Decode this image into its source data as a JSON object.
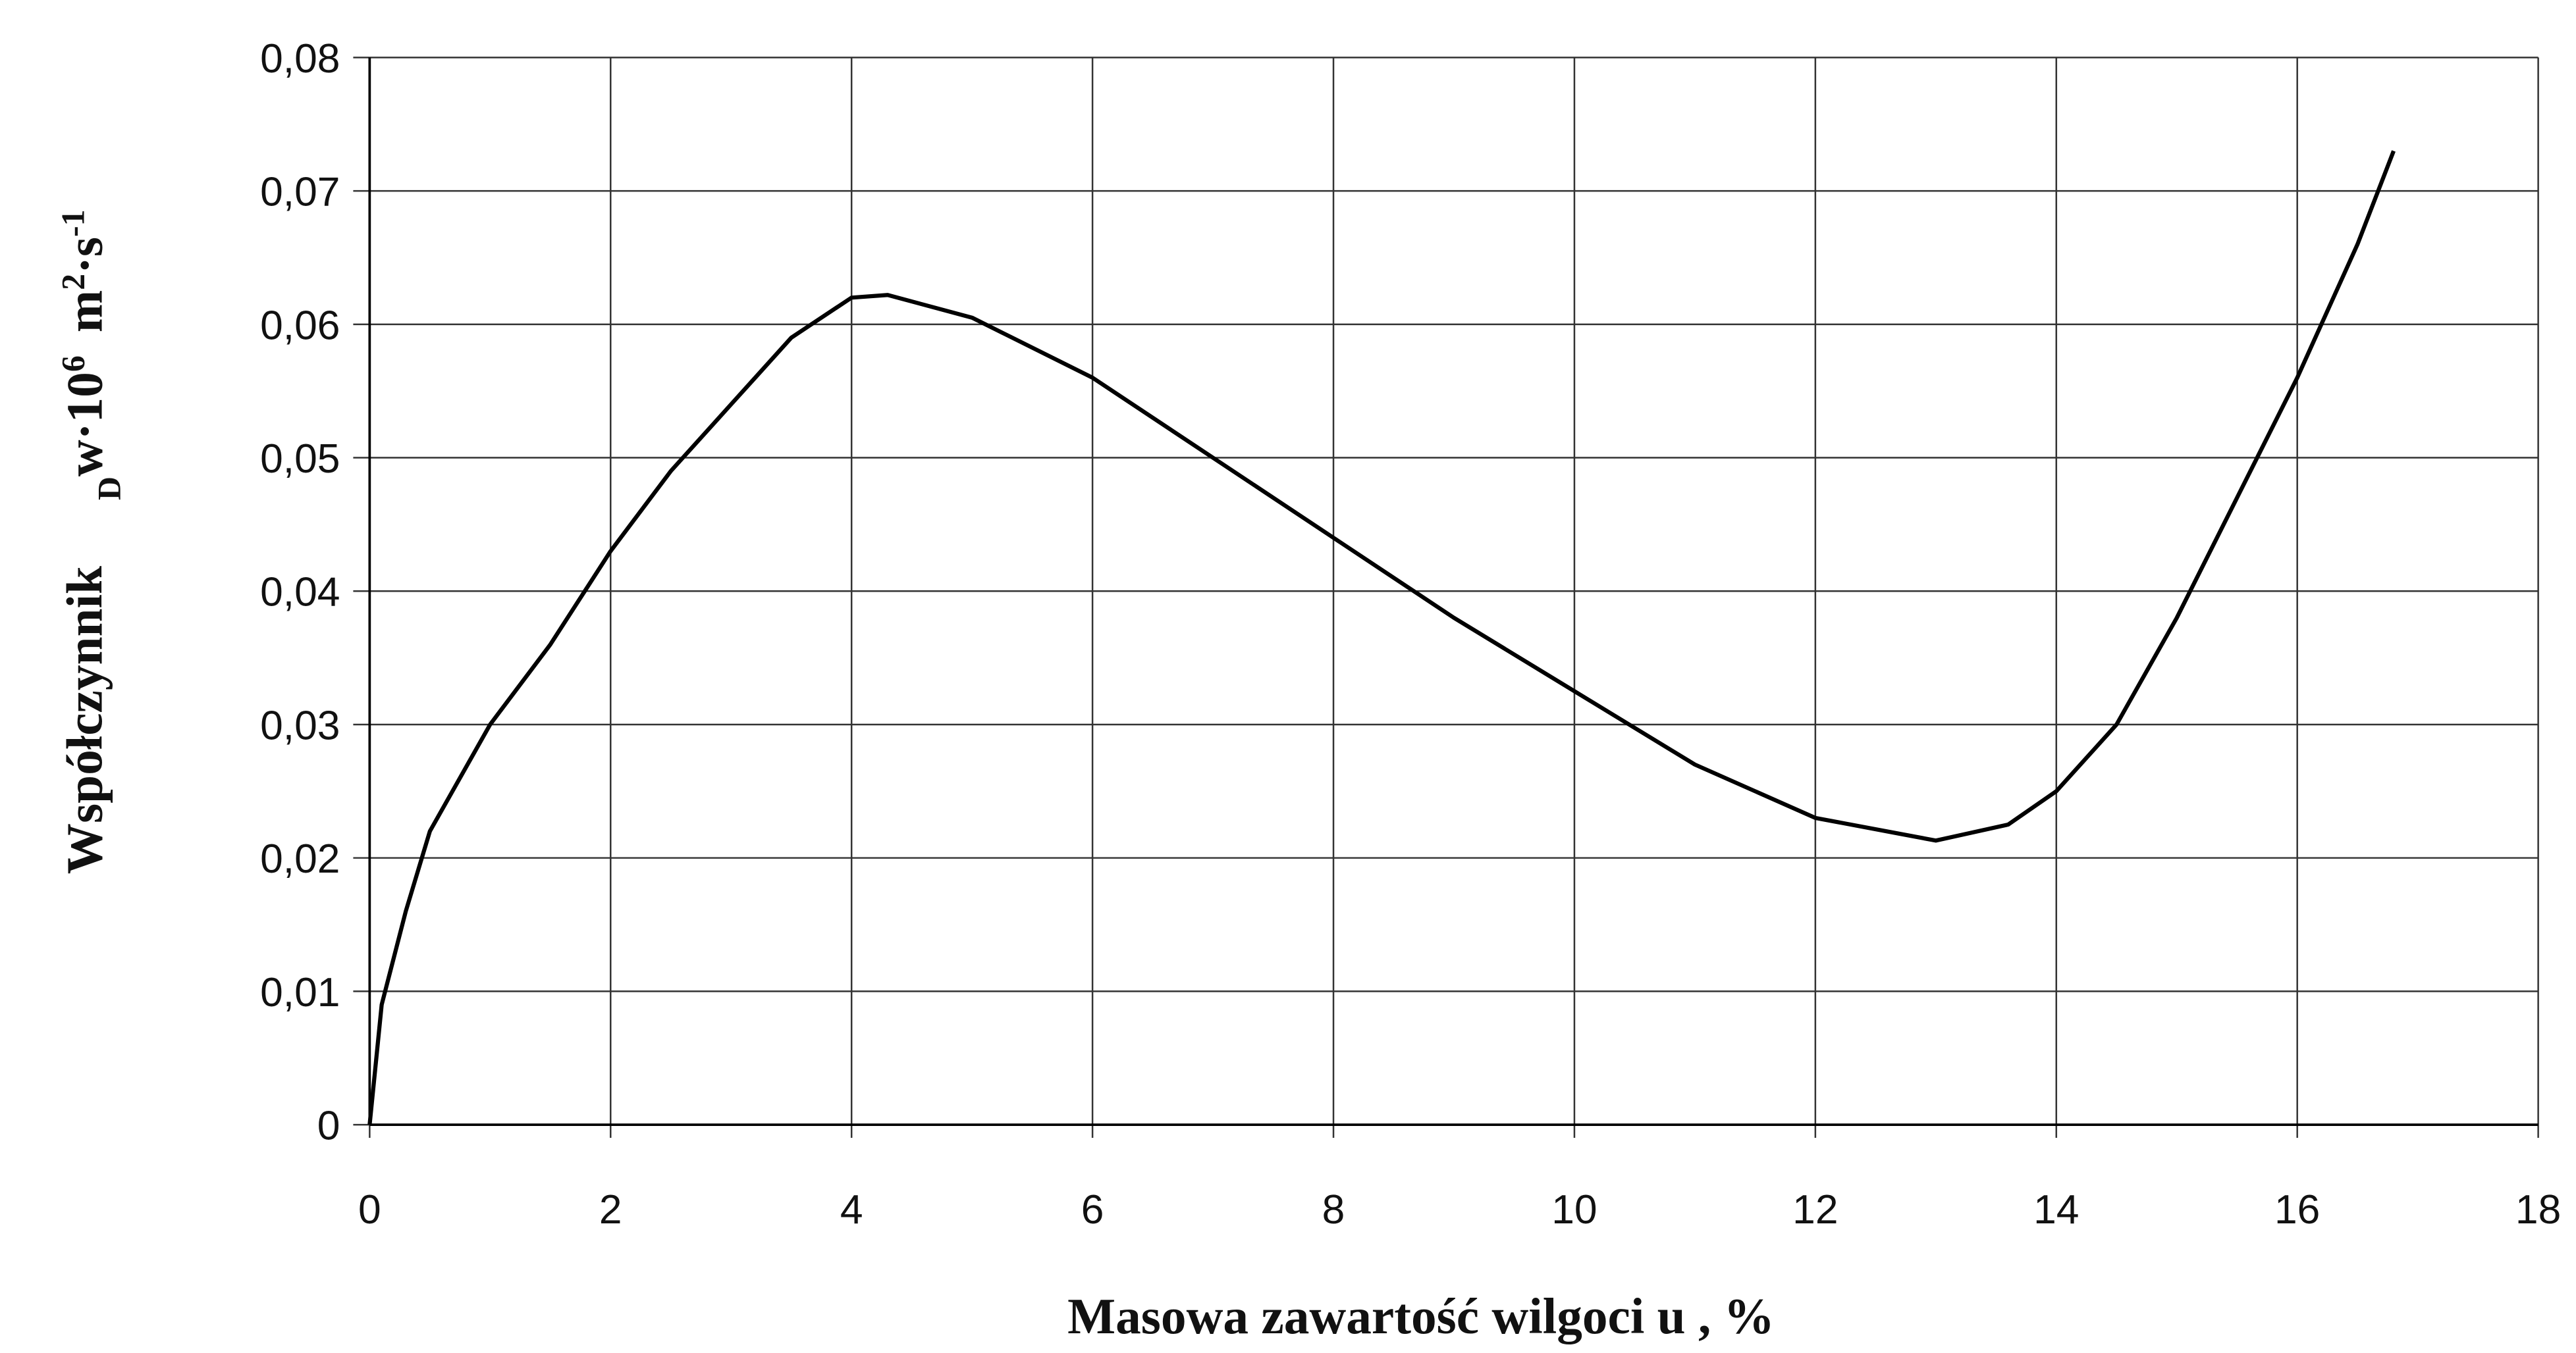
{
  "chart_data": {
    "type": "line",
    "x_label": "Masowa zawartość wilgoci u ,  %",
    "y_label_parts": [
      "Współczynnik",
      "D",
      "w",
      "·10",
      "6",
      "m",
      "2",
      "·s",
      "-1"
    ],
    "x": [
      0,
      0.1,
      0.3,
      0.5,
      1,
      1.5,
      2,
      2.5,
      3,
      3.5,
      4,
      4.3,
      5,
      6,
      7,
      8,
      9,
      10,
      11,
      12,
      13,
      13.6,
      14,
      14.5,
      15,
      15.5,
      16,
      16.5,
      16.8
    ],
    "series": [
      {
        "color": "#000000",
        "values": [
          0,
          0.009,
          0.016,
          0.022,
          0.03,
          0.036,
          0.043,
          0.049,
          0.054,
          0.059,
          0.062,
          0.0622,
          0.0605,
          0.056,
          0.05,
          0.044,
          0.038,
          0.0325,
          0.027,
          0.023,
          0.0213,
          0.0225,
          0.025,
          0.03,
          0.038,
          0.047,
          0.056,
          0.066,
          0.073
        ]
      }
    ],
    "xlim": [
      0,
      18
    ],
    "xticks": [
      0,
      2,
      4,
      6,
      8,
      10,
      12,
      14,
      16,
      18
    ],
    "ylim": [
      0,
      0.08
    ],
    "yticks": [
      0,
      {
        "value": 0.01,
        "label": "0,01"
      },
      {
        "value": 0.02,
        "label": "0,02"
      },
      {
        "value": 0.03,
        "label": "0,03"
      },
      {
        "value": 0.04,
        "label": "0,04"
      },
      {
        "value": 0.05,
        "label": "0,05"
      },
      {
        "value": 0.06,
        "label": "0,06"
      },
      {
        "value": 0.07,
        "label": "0,07"
      },
      {
        "value": 0.08,
        "label": "0,08"
      }
    ],
    "grid": true
  }
}
